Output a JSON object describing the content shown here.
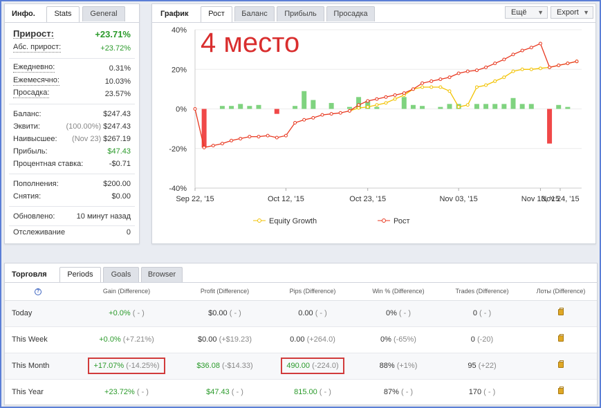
{
  "info": {
    "title": "Инфо.",
    "tabs": [
      "Stats",
      "General"
    ],
    "rows": [
      {
        "label": "Прирост:",
        "value": "+23.71%"
      },
      {
        "label": "Абс. прирост:",
        "value": "+23.72%"
      },
      {
        "label": "Ежедневно:",
        "value": "0.31%"
      },
      {
        "label": "Ежемесячно:",
        "value": "10.03%"
      },
      {
        "label": "Просадка:",
        "value": "23.57%"
      },
      {
        "label": "Баланс:",
        "value": "$247.43"
      },
      {
        "label": "Эквити:",
        "sub": "(100.00%)",
        "value": "$247.43"
      },
      {
        "label": "Наивысшее:",
        "sub": "(Nov 23)",
        "value": "$267.19"
      },
      {
        "label": "Прибыль:",
        "value": "$47.43"
      },
      {
        "label": "Процентная ставка:",
        "value": "-$0.71"
      },
      {
        "label": "Пополнения:",
        "value": "$200.00"
      },
      {
        "label": "Снятия:",
        "value": "$0.00"
      },
      {
        "label": "Обновлено:",
        "value": "10 минут назад"
      },
      {
        "label": "Отслеживание",
        "value": "0"
      }
    ]
  },
  "chart": {
    "title": "График",
    "tabs": [
      "Рост",
      "Баланс",
      "Прибыль",
      "Просадка"
    ],
    "menu_more": "Ещё",
    "menu_export": "Export",
    "overlay_text": "4 место",
    "legend": [
      "Equity Growth",
      "Рост"
    ],
    "colors": {
      "growth": "#e8371f",
      "equity": "#f2c200",
      "bar_pos": "#7fd37f",
      "bar_neg": "#f04848"
    }
  },
  "chart_data": {
    "type": "line",
    "x_tick_labels": [
      "Sep 22, '15",
      "Oct 12, '15",
      "Oct 23, '15",
      "Nov 03, '15",
      "Nov 13, '15",
      "Nov 24, '15"
    ],
    "y_tick_labels": [
      "40%",
      "20%",
      "0%",
      "-20%",
      "-40%"
    ],
    "ylim": [
      -40,
      40
    ],
    "series": [
      {
        "name": "Рост",
        "values": [
          0,
          -19.5,
          -18.5,
          -17.5,
          -16,
          -15,
          -14,
          -14,
          -13.5,
          -14.5,
          -13.5,
          -7,
          -5.5,
          -4.5,
          -3,
          -2.5,
          -2,
          -1,
          2,
          4,
          5,
          6,
          7,
          8,
          10,
          13,
          14,
          15,
          16,
          18,
          19,
          19.5,
          21,
          23,
          25,
          27.5,
          29.5,
          31,
          33,
          21,
          22,
          23,
          24
        ]
      },
      {
        "name": "Equity Growth",
        "start_index": 17,
        "values": [
          -1,
          0.5,
          1,
          2,
          3,
          5,
          7,
          10,
          11,
          11,
          11,
          9,
          1,
          2,
          11,
          12,
          14,
          16,
          19,
          20,
          20,
          20.5,
          21,
          22,
          23,
          24
        ]
      },
      {
        "name": "daily",
        "values": [
          0,
          -19.5,
          0,
          1.5,
          1.5,
          2.5,
          1.5,
          2,
          0,
          -2.5,
          0,
          1.5,
          9,
          4.5,
          0,
          3,
          0,
          1,
          6,
          4,
          1,
          0,
          0,
          6,
          2,
          1.5,
          0,
          1,
          2.5,
          2.5,
          0,
          2.5,
          2.5,
          2.5,
          2.5,
          5.5,
          2.5,
          2.5,
          0,
          -17.5,
          2,
          1,
          0
        ]
      }
    ]
  },
  "trading": {
    "title": "Торговля",
    "tabs": [
      "Periods",
      "Goals",
      "Browser"
    ],
    "headers": [
      "Gain (Difference)",
      "Profit (Difference)",
      "Pips (Difference)",
      "Win % (Difference)",
      "Trades (Difference)",
      "Лоты (Difference)"
    ],
    "rows": [
      {
        "name": "Today",
        "gain": "+0.0%",
        "gain_diff": "( - )",
        "profit": "$0.00",
        "profit_diff": "( - )",
        "pips": "0.00",
        "pips_diff": "( - )",
        "win": "0%",
        "win_diff": "( - )",
        "trades": "0",
        "trades_diff": "( - )"
      },
      {
        "name": "This Week",
        "gain": "+0.0%",
        "gain_diff": "(+7.21%)",
        "profit": "$0.00",
        "profit_diff": "(+$19.23)",
        "pips": "0.00",
        "pips_diff": "(+264.0)",
        "win": "0%",
        "win_diff": "(-65%)",
        "trades": "0",
        "trades_diff": "(-20)"
      },
      {
        "name": "This Month",
        "gain": "+17.07%",
        "gain_diff": "(-14.25%)",
        "profit": "$36.08",
        "profit_diff": "(-$14.33)",
        "pips": "490.00",
        "pips_diff": "(-224.0)",
        "win": "88%",
        "win_diff": "(+1%)",
        "trades": "95",
        "trades_diff": "(+22)"
      },
      {
        "name": "This Year",
        "gain": "+23.72%",
        "gain_diff": "( - )",
        "profit": "$47.43",
        "profit_diff": "( - )",
        "pips": "815.00",
        "pips_diff": "( - )",
        "win": "87%",
        "win_diff": "( - )",
        "trades": "170",
        "trades_diff": "( - )"
      }
    ]
  }
}
